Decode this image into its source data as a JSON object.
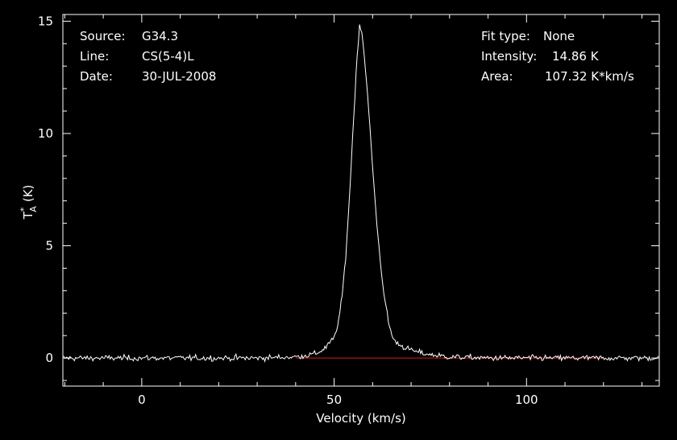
{
  "chart_data": {
    "type": "line",
    "xlabel": "Velocity (km/s)",
    "ylabel": {
      "main": "T",
      "sup": "*",
      "sub": "A",
      "unit": "(K)"
    },
    "xlim": [
      -20.5,
      134.5
    ],
    "ylim": [
      -1.25,
      15.3
    ],
    "x_ticks": [
      0,
      50,
      100
    ],
    "y_ticks": [
      0,
      5,
      10,
      15
    ],
    "baseline_y": 0,
    "series": [
      {
        "points": [
          [
            -20.5,
            0.0
          ],
          [
            -10,
            0.0
          ],
          [
            0,
            0.0
          ],
          [
            10,
            0.0
          ],
          [
            20,
            0.0
          ],
          [
            30,
            0.0
          ],
          [
            40,
            0.05
          ],
          [
            44,
            0.15
          ],
          [
            46,
            0.25
          ],
          [
            48,
            0.5
          ],
          [
            50,
            0.9
          ],
          [
            51,
            1.5
          ],
          [
            52,
            2.6
          ],
          [
            53,
            4.5
          ],
          [
            54,
            7.2
          ],
          [
            55,
            10.5
          ],
          [
            56,
            13.5
          ],
          [
            56.6,
            14.86
          ],
          [
            57.2,
            14.5
          ],
          [
            58,
            13.2
          ],
          [
            59,
            11.0
          ],
          [
            60,
            8.5
          ],
          [
            61,
            6.2
          ],
          [
            62,
            4.3
          ],
          [
            63,
            2.8
          ],
          [
            64,
            1.7
          ],
          [
            65,
            1.0
          ],
          [
            66,
            0.7
          ],
          [
            68,
            0.5
          ],
          [
            70,
            0.35
          ],
          [
            72,
            0.25
          ],
          [
            75,
            0.15
          ],
          [
            80,
            0.05
          ],
          [
            90,
            0.0
          ],
          [
            100,
            0.0
          ],
          [
            110,
            0.0
          ],
          [
            120,
            0.0
          ],
          [
            134.5,
            0.0
          ]
        ],
        "noise_rms": 0.09,
        "color": "#ffffff"
      }
    ],
    "baseline_color": "#d11a1a",
    "grid": false
  },
  "info_left": [
    {
      "key": "Source:",
      "value": "G34.3"
    },
    {
      "key": "Line:",
      "value": "CS(5-4)L"
    },
    {
      "key": "Date:",
      "value": "30-JUL-2008"
    }
  ],
  "info_right": [
    {
      "key": "Fit type:",
      "value": "None"
    },
    {
      "key": "Intensity:",
      "value": "14.86 K"
    },
    {
      "key": "Area:",
      "value": "107.32 K*km/s"
    }
  ],
  "colors": {
    "background": "#000000",
    "foreground": "#ffffff",
    "baseline": "#d11a1a"
  }
}
